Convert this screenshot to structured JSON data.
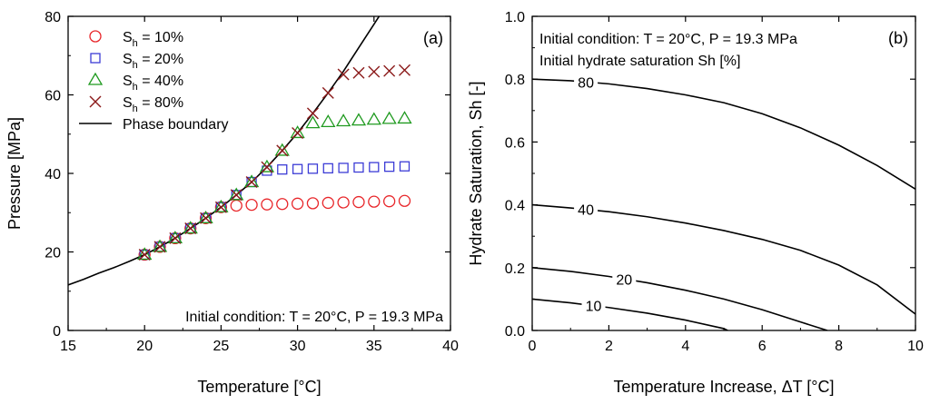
{
  "chart_data": [
    {
      "type": "scatter",
      "panel_label": "(a)",
      "xlabel": "Temperature [°C]",
      "ylabel": "Pressure [MPa]",
      "xlim": [
        15,
        40
      ],
      "ylim": [
        0,
        80
      ],
      "x_ticks": [
        15,
        20,
        25,
        30,
        35,
        40
      ],
      "y_ticks": [
        0,
        20,
        40,
        60,
        80
      ],
      "legend": "top-left",
      "annotation": "Initial condition: T = 20°C, P = 19.3 MPa",
      "series": [
        {
          "name": "Sh = 10%",
          "name_main": "S",
          "name_sub": "h",
          "name_rest": " = 10%",
          "marker": "circle",
          "color": "#e8262a",
          "x": [
            20,
            21,
            22,
            23,
            24,
            25,
            26,
            27,
            28,
            29,
            30,
            31,
            32,
            33,
            34,
            35,
            36,
            37
          ],
          "y": [
            19.3,
            21.3,
            23.5,
            26.0,
            28.6,
            31.4,
            31.8,
            32.0,
            32.1,
            32.2,
            32.3,
            32.4,
            32.5,
            32.6,
            32.7,
            32.8,
            32.9,
            33.0
          ]
        },
        {
          "name": "Sh = 20%",
          "name_main": "S",
          "name_sub": "h",
          "name_rest": " = 20%",
          "marker": "square",
          "color": "#3c3cd6",
          "x": [
            20,
            21,
            22,
            23,
            24,
            25,
            26,
            27,
            28,
            29,
            30,
            31,
            32,
            33,
            34,
            35,
            36,
            37
          ],
          "y": [
            19.3,
            21.3,
            23.5,
            26.0,
            28.6,
            31.4,
            34.5,
            37.8,
            40.7,
            41.0,
            41.1,
            41.2,
            41.3,
            41.4,
            41.5,
            41.6,
            41.7,
            41.8
          ]
        },
        {
          "name": "Sh = 40%",
          "name_main": "S",
          "name_sub": "h",
          "name_rest": " = 40%",
          "marker": "triangle",
          "color": "#1f9a1f",
          "x": [
            20,
            21,
            22,
            23,
            24,
            25,
            26,
            27,
            28,
            29,
            30,
            31,
            32,
            33,
            34,
            35,
            36,
            37
          ],
          "y": [
            19.3,
            21.3,
            23.5,
            26.0,
            28.6,
            31.4,
            34.5,
            37.8,
            41.6,
            45.8,
            50.3,
            52.8,
            53.1,
            53.3,
            53.5,
            53.7,
            53.9,
            54.0
          ]
        },
        {
          "name": "Sh = 80%",
          "name_main": "S",
          "name_sub": "h",
          "name_rest": " = 80%",
          "marker": "x",
          "color": "#8b1a1a",
          "x": [
            20,
            21,
            22,
            23,
            24,
            25,
            26,
            27,
            28,
            29,
            30,
            31,
            32,
            33,
            34,
            35,
            36,
            37
          ],
          "y": [
            19.3,
            21.3,
            23.5,
            26.0,
            28.6,
            31.4,
            34.5,
            37.8,
            41.6,
            45.8,
            50.3,
            55.3,
            60.5,
            65.2,
            65.6,
            65.9,
            66.1,
            66.3
          ]
        },
        {
          "name": "Phase boundary",
          "marker": "line",
          "color": "#000000",
          "x": [
            15,
            16,
            17,
            18,
            19,
            20,
            21,
            22,
            23,
            24,
            25,
            26,
            27,
            28,
            29,
            30,
            31,
            32,
            33,
            34,
            35,
            36,
            37
          ],
          "y": [
            11.6,
            13.0,
            14.6,
            16.0,
            17.6,
            19.3,
            21.3,
            23.5,
            26.0,
            28.6,
            31.4,
            34.5,
            37.8,
            41.6,
            45.8,
            50.3,
            55.3,
            60.5,
            66.0,
            72.0,
            78.0,
            84.0,
            90.0
          ]
        }
      ]
    },
    {
      "type": "line",
      "panel_label": "(b)",
      "xlabel": "Temperature Increase, ΔT [°C]",
      "ylabel": "Hydrate Saturation, Sh [-]",
      "xlim": [
        0,
        10
      ],
      "ylim": [
        0,
        1.0
      ],
      "x_ticks": [
        0,
        2,
        4,
        6,
        8,
        10
      ],
      "y_ticks": [
        0.0,
        0.2,
        0.4,
        0.6,
        0.8,
        1.0
      ],
      "annotation_line1": "Initial condition: T = 20°C, P = 19.3 MPa",
      "annotation_line2": "Initial hydrate saturation Sh [%]",
      "series": [
        {
          "name": "80",
          "color": "#000000",
          "x": [
            0,
            1,
            2,
            3,
            4,
            5,
            6,
            7,
            8,
            9,
            10
          ],
          "y": [
            0.8,
            0.795,
            0.785,
            0.77,
            0.75,
            0.725,
            0.69,
            0.645,
            0.59,
            0.525,
            0.45
          ]
        },
        {
          "name": "40",
          "color": "#000000",
          "x": [
            0,
            1,
            2,
            3,
            4,
            5,
            6,
            7,
            8,
            9,
            10
          ],
          "y": [
            0.4,
            0.39,
            0.378,
            0.362,
            0.342,
            0.318,
            0.29,
            0.255,
            0.208,
            0.145,
            0.052
          ]
        },
        {
          "name": "20",
          "color": "#000000",
          "x": [
            0,
            1,
            2,
            3,
            4,
            5,
            6,
            7,
            7.7
          ],
          "y": [
            0.2,
            0.188,
            0.172,
            0.152,
            0.128,
            0.1,
            0.066,
            0.027,
            0.0
          ]
        },
        {
          "name": "10",
          "color": "#000000",
          "x": [
            0,
            1,
            2,
            3,
            4,
            5,
            5.1
          ],
          "y": [
            0.1,
            0.088,
            0.073,
            0.055,
            0.033,
            0.006,
            0.0
          ]
        }
      ]
    }
  ]
}
